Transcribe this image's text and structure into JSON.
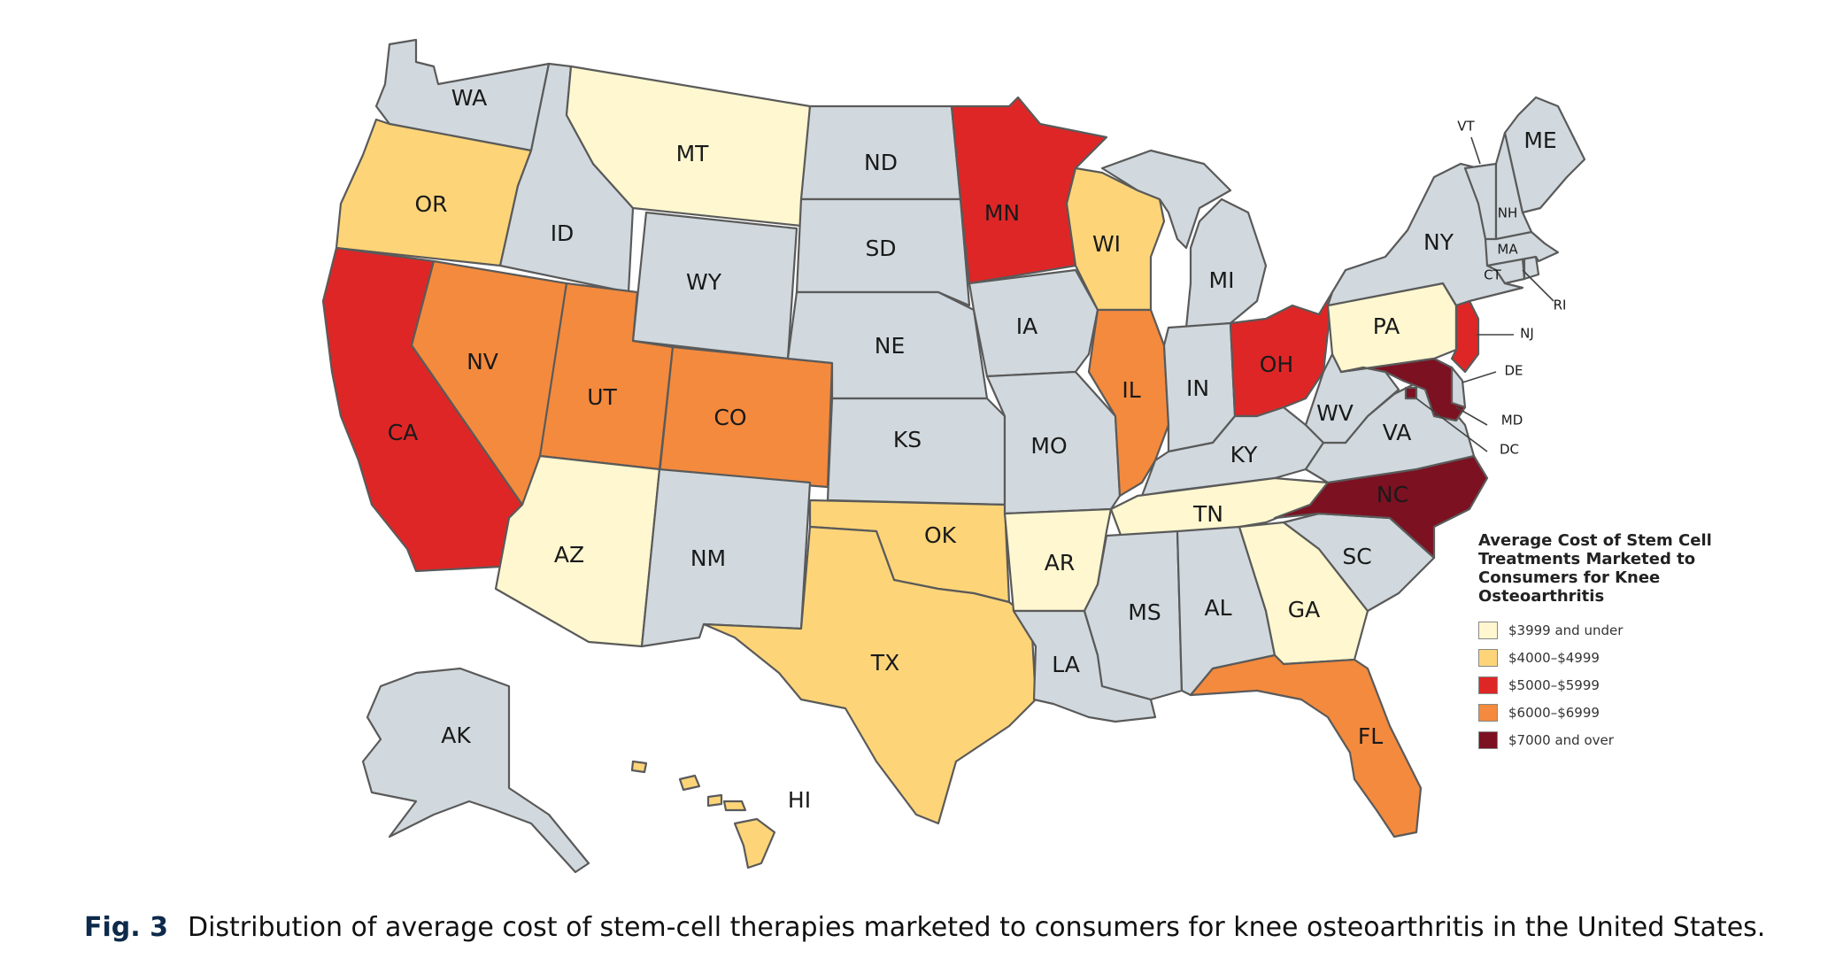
{
  "map": {
    "legend": {
      "title": "Average Cost of Stem Cell Treatments Marketed to Consumers for Knee Osteoarthritis",
      "items": [
        {
          "key": "c1",
          "label": "$3999 and under",
          "color": "#fef7cf"
        },
        {
          "key": "c2",
          "label": "$4000–$4999",
          "color": "#fdd578"
        },
        {
          "key": "c3",
          "label": "$5000–$5999",
          "color": "#de2626"
        },
        {
          "key": "c4",
          "label": "$6000–$6999",
          "color": "#f48a3d"
        },
        {
          "key": "c5",
          "label": "$7000 and over",
          "color": "#7c1121"
        }
      ],
      "no_data_color": "#d1d9de"
    },
    "states": {
      "WA": "none",
      "OR": "c2",
      "CA": "c3",
      "ID": "none",
      "NV": "c4",
      "MT": "c1",
      "WY": "none",
      "UT": "c4",
      "CO": "c4",
      "AZ": "c1",
      "NM": "none",
      "ND": "none",
      "SD": "none",
      "NE": "none",
      "KS": "none",
      "OK": "c2",
      "TX": "c2",
      "MN": "c3",
      "IA": "none",
      "MO": "none",
      "AR": "c1",
      "LA": "none",
      "WI": "c2",
      "IL": "c4",
      "MI": "none",
      "IN": "none",
      "OH": "c3",
      "KY": "none",
      "TN": "c1",
      "MS": "none",
      "AL": "none",
      "GA": "c1",
      "FL": "c4",
      "SC": "none",
      "NC": "c5",
      "VA": "none",
      "WV": "none",
      "PA": "c1",
      "NY": "none",
      "NJ": "c3",
      "DE": "none",
      "MD": "c5",
      "DC": "c5",
      "CT": "none",
      "RI": "none",
      "MA": "none",
      "VT": "none",
      "NH": "none",
      "ME": "none",
      "AK": "none",
      "HI": "c2"
    }
  },
  "caption": {
    "label": "Fig. 3",
    "text": "Distribution of average cost of stem-cell therapies marketed to consumers for knee osteoarthritis in the United States."
  }
}
